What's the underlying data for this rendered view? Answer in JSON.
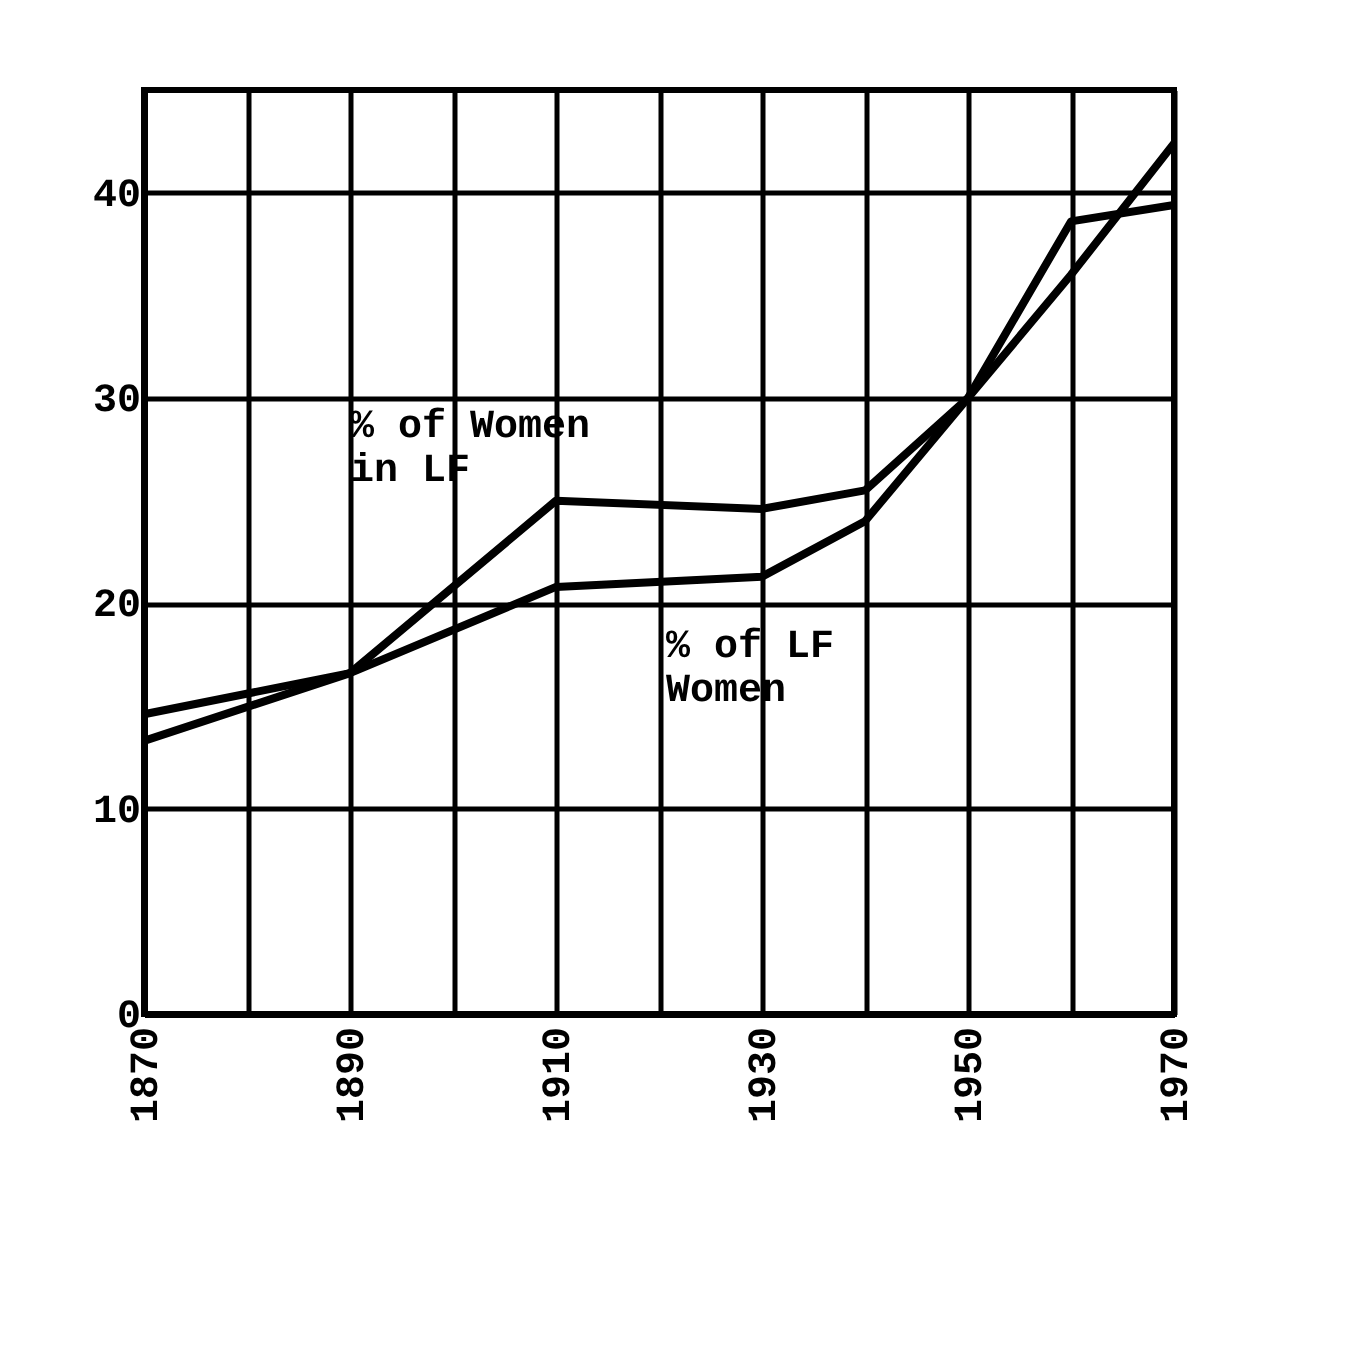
{
  "chart_data": {
    "type": "line",
    "x": [
      1870,
      1890,
      1910,
      1930,
      1940,
      1950,
      1960,
      1970
    ],
    "series": [
      {
        "name": "% of Women in LF",
        "color": "#000000",
        "values": [
          14.6,
          16.6,
          25,
          24.6,
          25.5,
          30,
          38.6,
          39.4
        ]
      },
      {
        "name": "% of LF Women",
        "color": "#000000",
        "values": [
          13.3,
          16.6,
          20.8,
          21.3,
          24,
          30,
          36,
          42.4
        ]
      }
    ],
    "xlim": [
      1870,
      1970
    ],
    "xticks": [
      1870,
      {
        "value": 1880,
        "label": null
      },
      1890,
      {
        "value": 1900,
        "label": null
      },
      1910,
      {
        "value": 1920,
        "label": null
      },
      1930,
      {
        "value": 1940,
        "label": null
      },
      1950,
      {
        "value": 1960,
        "label": null
      },
      1970
    ],
    "ylim": [
      0,
      45
    ],
    "yticks": [
      0,
      10,
      20,
      30,
      40
    ],
    "grid": true,
    "legend": false,
    "marker": "none",
    "line_style": "solid"
  }
}
